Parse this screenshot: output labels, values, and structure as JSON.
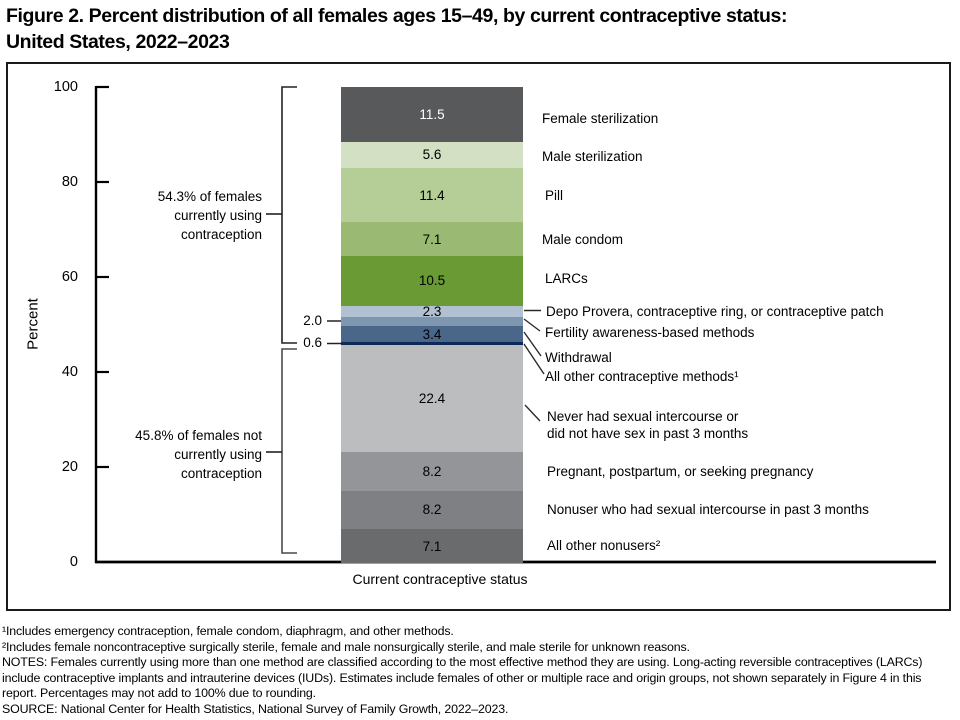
{
  "figure": {
    "title_line1": "Figure 2. Percent distribution of all females ages 15–49, by current contraceptive status:",
    "title_line2": "United States, 2022–2023"
  },
  "chart_data": {
    "type": "bar",
    "stacked": true,
    "title": "Figure 2. Percent distribution of all females ages 15–49, by current contraceptive status: United States, 2022–2023",
    "xlabel": "Current contraceptive status",
    "ylabel": "Percent",
    "ylim": [
      0,
      100
    ],
    "grid": false,
    "ytick_labels": [
      "100",
      "80",
      "60",
      "40",
      "20",
      "0"
    ],
    "categories": [
      "Current contraceptive status"
    ],
    "segments": [
      {
        "label": "Female sterilization",
        "value": 11.5,
        "value_label": "11.5",
        "color": "#58595b",
        "value_label_position": "inside",
        "value_text_color": "#ffffff"
      },
      {
        "label": "Male sterilization",
        "value": 5.6,
        "value_label": "5.6",
        "color": "#d3e0c3",
        "value_label_position": "inside"
      },
      {
        "label": "Pill",
        "value": 11.4,
        "value_label": "11.4",
        "color": "#b5cd96",
        "value_label_position": "inside"
      },
      {
        "label": "Male condom",
        "value": 7.1,
        "value_label": "7.1",
        "color": "#9aba74",
        "value_label_position": "inside"
      },
      {
        "label": "LARCs",
        "value": 10.5,
        "value_label": "10.5",
        "color": "#699a33",
        "value_label_position": "inside"
      },
      {
        "label": "Depo Provera, contraceptive ring, or contraceptive patch",
        "value": 2.3,
        "value_label": "2.3",
        "color": "#b2c1d1",
        "value_label_position": "inside"
      },
      {
        "label": "Fertility awareness-based methods",
        "value": 2.0,
        "value_label": "2.0",
        "color": "#7f96b0",
        "value_label_position": "left"
      },
      {
        "label": "Withdrawal",
        "value": 3.4,
        "value_label": "3.4",
        "color": "#4a6789",
        "value_label_position": "inside"
      },
      {
        "label": "All other contraceptive methods¹",
        "value": 0.6,
        "value_label": "0.6",
        "color": "#0e2a56",
        "value_label_position": "left"
      },
      {
        "label": "Never had sexual intercourse or\ndid not have sex in past 3 months",
        "value": 22.4,
        "value_label": "22.4",
        "color": "#bcbdbf",
        "value_label_position": "inside"
      },
      {
        "label": "Pregnant, postpartum, or seeking pregnancy",
        "value": 8.2,
        "value_label": "8.2",
        "color": "#939598",
        "value_label_position": "inside"
      },
      {
        "label": "Nonuser who had sexual intercourse in past 3 months",
        "value": 8.2,
        "value_label": "8.2",
        "color": "#7e8083",
        "value_label_position": "inside"
      },
      {
        "label": "All other nonusers²",
        "value": 7.1,
        "value_label": "7.1",
        "color": "#6a6b6d",
        "value_label_position": "inside"
      }
    ],
    "group_annotations": [
      {
        "total": 54.3,
        "text": "54.3% of females\ncurrently using\ncontraception"
      },
      {
        "total": 45.8,
        "text": "45.8% of females not\ncurrently using\ncontraception"
      }
    ]
  },
  "footnotes": {
    "fn1": "¹Includes emergency contraception, female condom, diaphragm, and other methods.",
    "fn2": "²Includes female noncontraceptive surgically sterile, female and male nonsurgically sterile, and male sterile for unknown reasons.",
    "notes": "NOTES: Females currently using more than one method are classified according to the most effective method they are using. Long-acting reversible contraceptives (LARCs) include contraceptive implants and intrauterine devices (IUDs). Estimates include females of other or multiple race and origin groups, not shown separately in Figure 4 in this report. Percentages may not add to 100% due to rounding.",
    "source": "SOURCE: National Center for Health Statistics, National Survey of Family Growth, 2022–2023."
  }
}
